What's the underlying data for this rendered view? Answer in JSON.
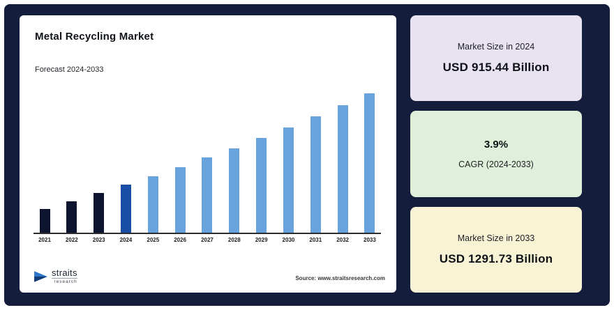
{
  "page": {
    "background": "#151d3d"
  },
  "chart": {
    "title": "Metal Recycling Market",
    "subtitle": "Forecast 2024-2033",
    "source": "Source: www.straitsresearch.com",
    "logo_text": "straits",
    "logo_subtext": "research"
  },
  "chart_data": {
    "type": "bar",
    "title": "Metal Recycling Market",
    "subtitle": "Forecast 2024-2033",
    "categories": [
      "2021",
      "2022",
      "2023",
      "2024",
      "2025",
      "2026",
      "2027",
      "2028",
      "2029",
      "2030",
      "2031",
      "2032",
      "2033"
    ],
    "values": [
      816.18,
      848.01,
      881.08,
      915.44,
      951.14,
      988.23,
      1026.77,
      1066.81,
      1108.42,
      1151.65,
      1196.56,
      1243.23,
      1291.73
    ],
    "unit": "USD Billion",
    "xlabel": "",
    "ylabel": "",
    "grid": false,
    "legend_position": "none",
    "bar_colors": [
      "#0d1430",
      "#0d1430",
      "#0d1430",
      "#1a4da6",
      "#68a3de",
      "#68a3de",
      "#68a3de",
      "#68a3de",
      "#68a3de",
      "#68a3de",
      "#68a3de",
      "#68a3de",
      "#68a3de"
    ]
  },
  "stat_cards": [
    {
      "label": "Market Size in 2024",
      "value": "USD 915.44 Billion",
      "bg": "#e9e3f1",
      "value_position": "bottom"
    },
    {
      "label": "CAGR (2024-2033)",
      "value": "3.9%",
      "bg": "#e0efd9",
      "value_position": "top"
    },
    {
      "label": "Market Size in 2033",
      "value": "USD 1291.73 Billion",
      "bg": "#f9f3d5",
      "value_position": "bottom"
    }
  ]
}
